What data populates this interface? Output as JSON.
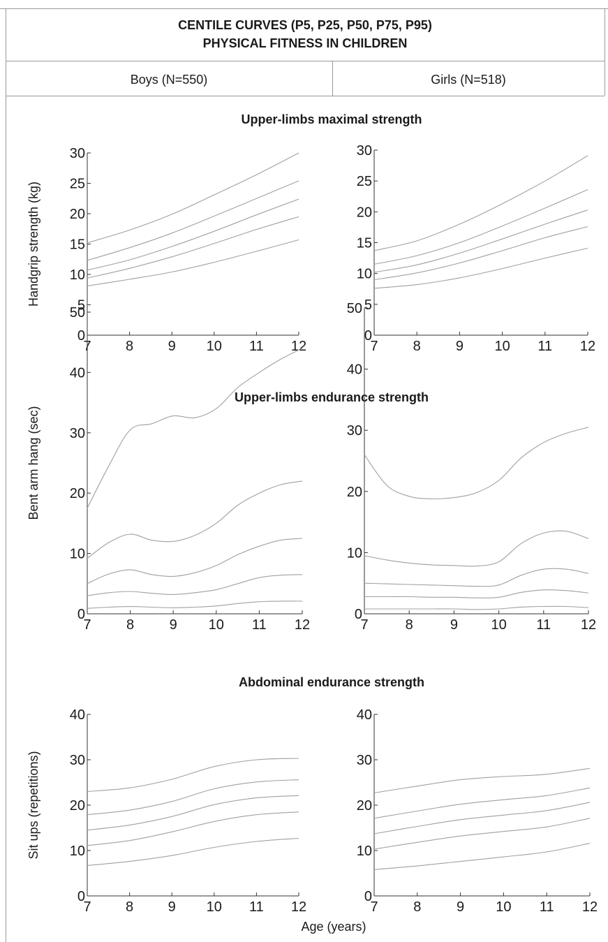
{
  "header": {
    "title_line1": "CENTILE CURVES (P5, P25, P50, P75, P95)",
    "title_line2": "PHYSICAL FITNESS IN CHILDREN",
    "groups": [
      "Boys (N=550)",
      "Girls (N=518)"
    ]
  },
  "xlabel": "Age (years)",
  "colors": {
    "curve": "#a0a0a0",
    "axis": "#333333",
    "text": "#1a1a1a"
  },
  "chart_data": [
    {
      "type": "line",
      "section_title": "Upper-limbs maximal strength",
      "panel": "Boys (N=550)",
      "ylabel": "Handgrip strength (kg)",
      "xlim": [
        7,
        12
      ],
      "ylim": [
        0,
        30
      ],
      "x": [
        7,
        8,
        9,
        10,
        11,
        12
      ],
      "y_ticks": [
        0,
        5,
        10,
        15,
        20,
        25,
        30
      ],
      "series": [
        {
          "values": [
            15.2,
            17.3,
            19.9,
            23.1,
            26.4,
            30.0
          ]
        },
        {
          "values": [
            12.3,
            14.4,
            16.8,
            19.6,
            22.5,
            25.4
          ]
        },
        {
          "values": [
            10.7,
            12.4,
            14.6,
            17.1,
            19.8,
            22.4
          ]
        },
        {
          "values": [
            9.4,
            11.0,
            12.9,
            15.1,
            17.4,
            19.5
          ]
        },
        {
          "values": [
            8.1,
            9.2,
            10.4,
            12.0,
            13.8,
            15.7
          ]
        }
      ]
    },
    {
      "type": "line",
      "section_title": "Upper-limbs maximal strength",
      "panel": "Girls (N=518)",
      "ylabel": "",
      "xlim": [
        7,
        12
      ],
      "ylim": [
        0,
        30
      ],
      "x": [
        7,
        8,
        9,
        10,
        11,
        12
      ],
      "y_ticks": [
        0,
        5,
        10,
        15,
        20,
        25,
        30
      ],
      "series": [
        {
          "values": [
            13.7,
            15.3,
            18.0,
            21.3,
            25.0,
            29.1
          ]
        },
        {
          "values": [
            11.5,
            12.9,
            15.0,
            17.7,
            20.6,
            23.6
          ]
        },
        {
          "values": [
            10.2,
            11.4,
            13.3,
            15.6,
            18.0,
            20.3
          ]
        },
        {
          "values": [
            9.0,
            10.1,
            11.7,
            13.7,
            15.8,
            17.6
          ]
        },
        {
          "values": [
            7.6,
            8.2,
            9.3,
            10.8,
            12.5,
            14.1
          ]
        }
      ]
    },
    {
      "type": "line",
      "section_title": "Upper-limbs endurance strength",
      "panel": "Boys (N=550)",
      "ylabel": "Bent arm hang (sec)",
      "xlim": [
        7,
        12
      ],
      "ylim": [
        0,
        50
      ],
      "x": [
        7,
        7.5,
        8,
        8.5,
        9,
        9.5,
        10,
        10.5,
        11,
        11.5,
        12
      ],
      "y_ticks": [
        0,
        10,
        20,
        30,
        40,
        50
      ],
      "series": [
        {
          "values": [
            17.5,
            24.5,
            30.5,
            31.5,
            32.8,
            32.5,
            34.0,
            37.5,
            40.0,
            42.2,
            44.0
          ]
        },
        {
          "values": [
            9.2,
            11.8,
            13.2,
            12.2,
            12.0,
            13.0,
            15.0,
            18.0,
            20.0,
            21.4,
            22.0
          ]
        },
        {
          "values": [
            5.0,
            6.6,
            7.3,
            6.5,
            6.2,
            6.8,
            8.0,
            9.8,
            11.2,
            12.2,
            12.5
          ]
        },
        {
          "values": [
            3.0,
            3.5,
            3.7,
            3.4,
            3.2,
            3.5,
            4.0,
            5.0,
            6.0,
            6.4,
            6.5
          ]
        },
        {
          "values": [
            0.9,
            1.1,
            1.2,
            1.1,
            1.0,
            1.1,
            1.3,
            1.7,
            2.0,
            2.1,
            2.1
          ]
        }
      ]
    },
    {
      "type": "line",
      "section_title": "Upper-limbs endurance strength",
      "panel": "Girls (N=518)",
      "ylabel": "",
      "xlim": [
        7,
        12
      ],
      "ylim": [
        0,
        50
      ],
      "x": [
        7,
        7.5,
        8,
        8.5,
        9,
        9.5,
        10,
        10.5,
        11,
        11.5,
        12
      ],
      "y_ticks": [
        0,
        10,
        20,
        30,
        40,
        50
      ],
      "series": [
        {
          "values": [
            26.0,
            21.0,
            19.2,
            18.8,
            19.0,
            19.8,
            21.8,
            25.5,
            28.0,
            29.5,
            30.5
          ]
        },
        {
          "values": [
            9.5,
            8.8,
            8.3,
            8.0,
            7.9,
            7.8,
            8.5,
            11.5,
            13.2,
            13.5,
            12.3
          ]
        },
        {
          "values": [
            5.0,
            4.9,
            4.8,
            4.7,
            4.6,
            4.5,
            4.7,
            6.3,
            7.3,
            7.3,
            6.6
          ]
        },
        {
          "values": [
            2.8,
            2.8,
            2.8,
            2.7,
            2.7,
            2.6,
            2.7,
            3.5,
            3.9,
            3.8,
            3.4
          ]
        },
        {
          "values": [
            0.8,
            0.8,
            0.8,
            0.8,
            0.8,
            0.7,
            0.8,
            1.1,
            1.2,
            1.2,
            1.0
          ]
        }
      ]
    },
    {
      "type": "line",
      "section_title": "Abdominal endurance strength",
      "panel": "Boys (N=550)",
      "ylabel": "Sit ups (repetitions)",
      "xlim": [
        7,
        12
      ],
      "ylim": [
        0,
        40
      ],
      "x": [
        7,
        8,
        9,
        10,
        11,
        12
      ],
      "y_ticks": [
        0,
        10,
        20,
        30,
        40
      ],
      "series": [
        {
          "values": [
            23.0,
            23.8,
            25.7,
            28.5,
            30.0,
            30.3
          ]
        },
        {
          "values": [
            17.9,
            18.9,
            20.8,
            23.6,
            25.1,
            25.6
          ]
        },
        {
          "values": [
            14.5,
            15.6,
            17.5,
            20.1,
            21.6,
            22.1
          ]
        },
        {
          "values": [
            11.1,
            12.2,
            14.1,
            16.4,
            17.9,
            18.5
          ]
        },
        {
          "values": [
            6.7,
            7.6,
            8.9,
            10.7,
            12.0,
            12.7
          ]
        }
      ]
    },
    {
      "type": "line",
      "section_title": "Abdominal endurance strength",
      "panel": "Girls (N=518)",
      "ylabel": "",
      "xlim": [
        7,
        12
      ],
      "ylim": [
        0,
        40
      ],
      "x": [
        7,
        8,
        9,
        10,
        11,
        12
      ],
      "y_ticks": [
        0,
        10,
        20,
        30,
        40
      ],
      "series": [
        {
          "values": [
            22.7,
            24.2,
            25.6,
            26.3,
            26.8,
            28.1
          ]
        },
        {
          "values": [
            17.1,
            18.7,
            20.2,
            21.2,
            22.1,
            23.8
          ]
        },
        {
          "values": [
            13.7,
            15.3,
            16.8,
            17.8,
            18.8,
            20.6
          ]
        },
        {
          "values": [
            10.3,
            11.8,
            13.2,
            14.2,
            15.2,
            17.1
          ]
        },
        {
          "values": [
            5.8,
            6.6,
            7.6,
            8.6,
            9.7,
            11.6
          ]
        }
      ]
    }
  ]
}
